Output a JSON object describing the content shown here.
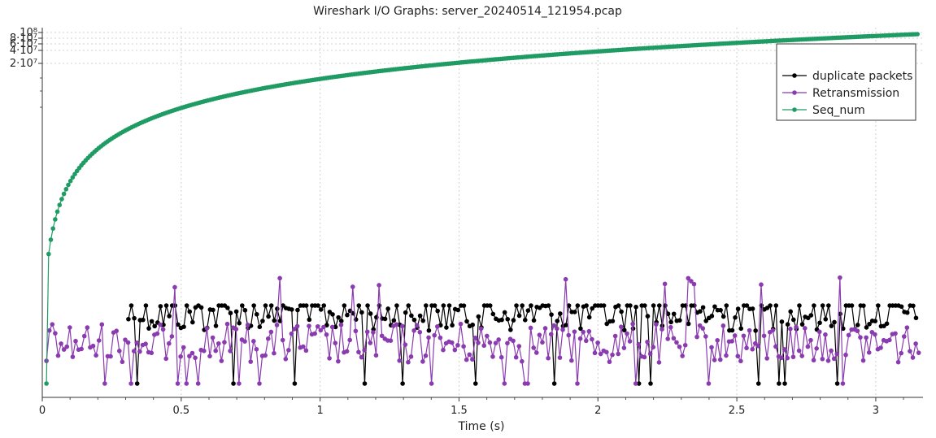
{
  "chart_data": {
    "type": "line",
    "title": "Wireshark I/O Graphs: server_20240514_121954.pcap",
    "xlabel": "Time (s)",
    "ylabel": "",
    "xlim": [
      0,
      3.17
    ],
    "y_scale": "log",
    "x_ticks": [
      "0",
      "0.5",
      "1",
      "1.5",
      "2",
      "2.5",
      "3"
    ],
    "y_ticks": [
      "10⁸",
      "8·10⁷",
      "6·10⁷",
      "4·10⁷",
      "2·10⁷"
    ],
    "grid": true,
    "legend_position": "top-right",
    "series": [
      {
        "name": "duplicate packets",
        "color": "#000000"
      },
      {
        "name": "Retransmission",
        "color": "#8b3bb0"
      },
      {
        "name": "Seq_num",
        "color": "#1f9b64"
      }
    ]
  }
}
